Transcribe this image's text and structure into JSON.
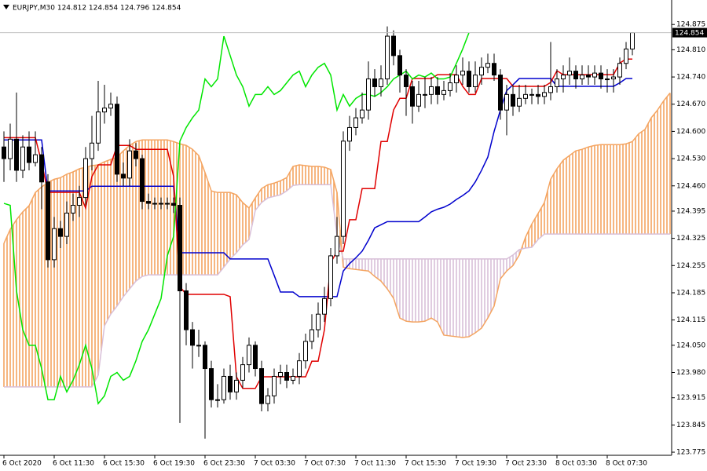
{
  "chart_data": {
    "type": "candlestick",
    "title": "EURJPY,M30  124.812 124.854 124.796 124.854",
    "categories": [
      "6 Oct 2020",
      null,
      null,
      null,
      null,
      null,
      null,
      null,
      "6 Oct 11:30",
      null,
      null,
      null,
      null,
      null,
      null,
      null,
      "6 Oct 15:30",
      null,
      null,
      null,
      null,
      null,
      null,
      null,
      "6 Oct 19:30",
      null,
      null,
      null,
      null,
      null,
      null,
      null,
      "6 Oct 23:30",
      null,
      null,
      null,
      null,
      null,
      null,
      null,
      "7 Oct 03:30",
      null,
      null,
      null,
      null,
      null,
      null,
      null,
      "7 Oct 07:30",
      null,
      null,
      null,
      null,
      null,
      null,
      null,
      "7 Oct 11:30",
      null,
      null,
      null,
      null,
      null,
      null,
      null,
      "7 Oct 15:30",
      null,
      null,
      null,
      null,
      null,
      null,
      null,
      "7 Oct 19:30",
      null,
      null,
      null,
      null,
      null,
      null,
      null,
      "7 Oct 23:30",
      null,
      null,
      null,
      null,
      null,
      null,
      null,
      "8 Oct 03:30",
      null,
      null,
      null,
      null,
      null,
      null,
      null,
      "8 Oct 07:30",
      null,
      null,
      null,
      null,
      null,
      null,
      null,
      null,
      null,
      null
    ],
    "open": [
      124.56,
      124.53,
      124.58,
      124.5,
      124.56,
      124.52,
      124.54,
      124.47,
      124.27,
      124.35,
      124.33,
      124.39,
      124.41,
      124.43,
      124.53,
      124.57,
      124.65,
      124.66,
      124.67,
      124.49,
      124.48,
      124.55,
      124.53,
      124.42,
      124.415,
      124.415,
      124.415,
      124.415,
      124.41,
      124.19,
      124.09,
      124.05,
      124.05,
      123.99,
      123.91,
      123.91,
      123.97,
      123.93,
      123.96,
      124.0,
      124.05,
      123.99,
      123.9,
      123.92,
      123.97,
      123.98,
      123.96,
      123.97,
      124.01,
      124.06,
      124.09,
      124.13,
      124.17,
      124.28,
      124.33,
      124.575,
      124.61,
      124.635,
      124.655,
      124.735,
      124.715,
      124.735,
      124.845,
      124.795,
      124.745,
      124.715,
      124.665,
      124.695,
      124.695,
      124.715,
      124.695,
      124.705,
      124.725,
      124.745,
      124.755,
      124.715,
      124.745,
      124.765,
      124.775,
      124.745,
      124.655,
      124.695,
      124.665,
      124.685,
      124.695,
      124.695,
      124.69,
      124.7,
      124.715,
      124.735,
      124.745,
      124.755,
      124.735,
      124.745,
      124.74,
      124.75,
      124.735,
      124.735,
      124.74,
      124.775,
      124.812,
      null,
      null,
      null,
      null,
      null,
      null
    ],
    "high": [
      124.6,
      124.62,
      124.7,
      124.59,
      124.6,
      124.6,
      124.56,
      124.49,
      124.38,
      124.37,
      124.42,
      124.44,
      124.46,
      124.56,
      124.64,
      124.73,
      124.72,
      124.7,
      124.69,
      124.52,
      124.58,
      124.57,
      124.54,
      124.44,
      124.43,
      124.43,
      124.43,
      124.43,
      124.43,
      124.21,
      124.11,
      124.09,
      124.06,
      124.01,
      123.95,
      123.99,
      124.0,
      123.98,
      124.02,
      124.07,
      124.06,
      124.01,
      123.94,
      123.99,
      124.0,
      124.0,
      123.99,
      124.03,
      124.08,
      124.13,
      124.16,
      124.2,
      124.3,
      124.38,
      124.6,
      124.64,
      124.66,
      124.7,
      124.78,
      124.76,
      124.77,
      124.87,
      124.86,
      124.81,
      124.76,
      124.73,
      124.73,
      124.74,
      124.74,
      124.74,
      124.73,
      124.75,
      124.77,
      124.79,
      124.78,
      124.78,
      124.79,
      124.8,
      124.8,
      124.76,
      124.72,
      124.72,
      124.72,
      124.72,
      124.71,
      124.72,
      124.72,
      124.83,
      124.76,
      124.77,
      124.79,
      124.77,
      124.77,
      124.77,
      124.77,
      124.77,
      124.76,
      124.76,
      124.79,
      124.83,
      124.854,
      null,
      null,
      null,
      null,
      null,
      null
    ],
    "low": [
      124.47,
      124.5,
      124.47,
      124.48,
      124.5,
      124.51,
      124.4,
      124.25,
      124.25,
      124.3,
      124.31,
      124.37,
      124.38,
      124.41,
      124.5,
      124.55,
      124.62,
      124.64,
      124.47,
      124.46,
      124.46,
      124.51,
      124.4,
      124.4,
      124.4,
      124.4,
      124.4,
      124.39,
      123.85,
      124.05,
      123.99,
      124.02,
      123.81,
      123.89,
      123.89,
      123.9,
      123.91,
      123.91,
      123.94,
      123.98,
      123.97,
      123.88,
      123.88,
      123.9,
      123.95,
      123.94,
      123.95,
      123.95,
      123.99,
      124.04,
      124.07,
      124.11,
      124.15,
      124.26,
      124.31,
      124.55,
      124.59,
      124.62,
      124.63,
      124.69,
      124.69,
      124.72,
      124.77,
      124.7,
      124.64,
      124.62,
      124.65,
      124.66,
      124.67,
      124.67,
      124.68,
      124.69,
      124.7,
      124.72,
      124.7,
      124.7,
      124.72,
      124.75,
      124.73,
      124.63,
      124.59,
      124.64,
      124.65,
      124.67,
      124.67,
      124.67,
      124.67,
      124.68,
      124.7,
      124.7,
      124.72,
      124.71,
      124.72,
      124.72,
      124.72,
      124.71,
      124.7,
      124.7,
      124.72,
      124.76,
      124.796,
      null,
      null,
      null,
      null,
      null,
      null
    ],
    "close": [
      124.53,
      124.58,
      124.5,
      124.56,
      124.52,
      124.54,
      124.47,
      124.27,
      124.35,
      124.33,
      124.39,
      124.41,
      124.43,
      124.53,
      124.57,
      124.65,
      124.66,
      124.67,
      124.49,
      124.48,
      124.55,
      124.53,
      124.42,
      124.415,
      124.415,
      124.415,
      124.415,
      124.41,
      124.19,
      124.09,
      124.05,
      124.05,
      123.99,
      123.91,
      123.91,
      123.97,
      123.93,
      123.96,
      124.0,
      124.05,
      123.99,
      123.9,
      123.92,
      123.97,
      123.98,
      123.96,
      123.97,
      124.01,
      124.06,
      124.09,
      124.13,
      124.17,
      124.28,
      124.33,
      124.575,
      124.61,
      124.635,
      124.655,
      124.735,
      124.715,
      124.735,
      124.845,
      124.795,
      124.745,
      124.715,
      124.665,
      124.695,
      124.695,
      124.715,
      124.695,
      124.705,
      124.725,
      124.745,
      124.755,
      124.715,
      124.745,
      124.765,
      124.775,
      124.745,
      124.655,
      124.695,
      124.665,
      124.685,
      124.695,
      124.695,
      124.69,
      124.7,
      124.715,
      124.735,
      124.745,
      124.755,
      124.735,
      124.745,
      124.74,
      124.75,
      124.735,
      124.735,
      124.74,
      124.775,
      124.812,
      124.854,
      null,
      null,
      null,
      null,
      null,
      null
    ],
    "up_color": "#ffffff",
    "down_color": "#000000",
    "wick_color": "#000000",
    "series": [
      {
        "color": "#e00000",
        "values": [
          124.584,
          124.584,
          124.584,
          124.584,
          124.584,
          124.584,
          124.52,
          124.443,
          124.443,
          124.443,
          124.443,
          124.443,
          124.443,
          124.403,
          124.484,
          124.514,
          124.514,
          124.514,
          124.564,
          124.564,
          124.564,
          124.554,
          124.554,
          124.554,
          124.554,
          124.554,
          124.554,
          124.484,
          124.201,
          124.181,
          124.181,
          124.181,
          124.181,
          124.181,
          124.181,
          124.181,
          124.175,
          123.969,
          123.939,
          123.939,
          123.939,
          123.969,
          123.969,
          123.969,
          123.969,
          123.969,
          123.969,
          123.969,
          123.969,
          124.009,
          124.009,
          124.09,
          124.262,
          124.292,
          124.292,
          124.373,
          124.373,
          124.453,
          124.453,
          124.453,
          124.574,
          124.574,
          124.655,
          124.685,
          124.685,
          124.736,
          124.736,
          124.736,
          124.736,
          124.746,
          124.746,
          124.746,
          124.746,
          124.716,
          124.695,
          124.695,
          124.736,
          124.736,
          124.736,
          124.736,
          124.736,
          124.716,
          124.716,
          124.716,
          124.716,
          124.716,
          124.716,
          124.726,
          124.756,
          124.746,
          124.746,
          124.746,
          124.746,
          124.746,
          124.746,
          124.746,
          124.746,
          124.746,
          124.776,
          124.786,
          124.786,
          null,
          null,
          null,
          null,
          null,
          null
        ]
      },
      {
        "color": "#0000cd",
        "values": [
          124.578,
          124.578,
          124.578,
          124.578,
          124.578,
          124.578,
          124.578,
          124.447,
          124.447,
          124.447,
          124.447,
          124.447,
          124.447,
          124.447,
          124.459,
          124.459,
          124.459,
          124.459,
          124.459,
          124.459,
          124.459,
          124.459,
          124.459,
          124.459,
          124.459,
          124.459,
          124.459,
          124.459,
          124.288,
          124.288,
          124.288,
          124.288,
          124.288,
          124.288,
          124.288,
          124.288,
          124.272,
          124.272,
          124.272,
          124.272,
          124.272,
          124.272,
          124.272,
          124.23,
          124.187,
          124.187,
          124.187,
          124.175,
          124.175,
          124.175,
          124.175,
          124.175,
          124.175,
          124.175,
          124.241,
          124.26,
          124.275,
          124.292,
          124.32,
          124.352,
          124.36,
          124.368,
          124.368,
          124.368,
          124.368,
          124.368,
          124.368,
          124.38,
          124.393,
          124.4,
          124.405,
          124.413,
          124.425,
          124.435,
          124.447,
          124.47,
          124.5,
          124.534,
          124.6,
          124.655,
          124.705,
          124.72,
          124.736,
          124.736,
          124.736,
          124.736,
          124.736,
          124.736,
          124.716,
          124.716,
          124.716,
          124.716,
          124.716,
          124.716,
          124.716,
          124.716,
          124.716,
          124.716,
          124.725,
          124.736,
          124.736,
          null,
          null,
          null,
          null,
          null,
          null
        ]
      },
      {
        "color": "#00e600",
        "values": [
          124.415,
          124.41,
          124.19,
          124.09,
          124.05,
          124.05,
          123.99,
          123.91,
          123.91,
          123.97,
          123.93,
          123.96,
          124.0,
          124.05,
          123.99,
          123.9,
          123.92,
          123.97,
          123.98,
          123.96,
          123.97,
          124.01,
          124.06,
          124.09,
          124.13,
          124.17,
          124.28,
          124.33,
          124.575,
          124.61,
          124.635,
          124.655,
          124.735,
          124.715,
          124.735,
          124.845,
          124.795,
          124.745,
          124.715,
          124.665,
          124.695,
          124.695,
          124.715,
          124.695,
          124.705,
          124.725,
          124.745,
          124.755,
          124.715,
          124.745,
          124.765,
          124.775,
          124.745,
          124.655,
          124.695,
          124.665,
          124.685,
          124.695,
          124.695,
          124.69,
          124.7,
          124.715,
          124.735,
          124.745,
          124.755,
          124.735,
          124.745,
          124.74,
          124.75,
          124.735,
          124.735,
          124.74,
          124.775,
          124.812,
          124.854,
          null,
          null,
          null,
          null,
          null,
          null,
          null,
          null,
          null,
          null,
          null,
          null,
          null,
          null,
          null,
          null,
          null,
          null,
          null,
          null,
          null,
          null,
          null,
          null,
          null,
          null,
          null,
          null,
          null,
          null,
          null,
          null
        ]
      },
      {
        "color": "#f4a460",
        "values": [
          124.312,
          124.348,
          124.373,
          124.393,
          124.409,
          124.443,
          124.457,
          124.469,
          124.477,
          124.481,
          124.49,
          124.496,
          124.504,
          124.508,
          124.512,
          124.514,
          124.522,
          124.528,
          124.534,
          124.55,
          124.564,
          124.574,
          124.578,
          124.578,
          124.578,
          124.578,
          124.578,
          124.574,
          124.568,
          124.564,
          124.554,
          124.538,
          124.494,
          124.447,
          124.443,
          124.443,
          124.443,
          124.437,
          124.417,
          124.403,
          124.429,
          124.453,
          124.463,
          124.467,
          124.473,
          124.481,
          124.51,
          124.514,
          124.512,
          124.51,
          124.51,
          124.508,
          124.502,
          124.443,
          124.251,
          124.247,
          124.245,
          124.243,
          124.241,
          124.227,
          124.215,
          124.195,
          124.171,
          124.12,
          124.112,
          124.11,
          124.11,
          124.112,
          124.12,
          124.11,
          124.076,
          124.074,
          124.072,
          124.07,
          124.072,
          124.082,
          124.094,
          124.12,
          124.151,
          124.221,
          124.241,
          124.255,
          124.282,
          124.328,
          124.362,
          124.389,
          124.417,
          124.477,
          124.504,
          124.526,
          124.538,
          124.55,
          124.554,
          124.56,
          124.564,
          124.566,
          124.566,
          124.566,
          124.566,
          124.568,
          124.574,
          124.594,
          124.605,
          124.635,
          124.655,
          124.679,
          124.699
        ]
      },
      {
        "color": "#d8bfd8",
        "values": [
          123.943,
          123.943,
          123.943,
          123.943,
          123.943,
          123.943,
          123.943,
          123.943,
          123.943,
          123.943,
          123.943,
          123.943,
          123.943,
          123.943,
          123.943,
          123.973,
          124.1,
          124.13,
          124.151,
          124.175,
          124.195,
          124.215,
          124.227,
          124.231,
          124.231,
          124.231,
          124.231,
          124.231,
          124.231,
          124.231,
          124.231,
          124.231,
          124.231,
          124.231,
          124.231,
          124.251,
          124.272,
          124.288,
          124.308,
          124.322,
          124.397,
          124.417,
          124.429,
          124.433,
          124.437,
          124.447,
          124.461,
          124.463,
          124.463,
          124.463,
          124.463,
          124.463,
          124.463,
          124.332,
          124.272,
          124.272,
          124.272,
          124.272,
          124.272,
          124.272,
          124.272,
          124.272,
          124.272,
          124.272,
          124.272,
          124.272,
          124.272,
          124.272,
          124.272,
          124.272,
          124.272,
          124.272,
          124.272,
          124.272,
          124.272,
          124.272,
          124.272,
          124.272,
          124.272,
          124.272,
          124.272,
          124.282,
          124.296,
          124.3,
          124.302,
          124.322,
          124.336,
          124.336,
          124.336,
          124.336,
          124.336,
          124.336,
          124.336,
          124.336,
          124.336,
          124.336,
          124.336,
          124.336,
          124.336,
          124.336,
          124.336,
          124.336,
          124.336,
          124.336,
          124.336,
          124.336,
          124.336
        ]
      }
    ],
    "cloud_hatch": true,
    "current_price": 124.854,
    "ylim": [
      123.767,
      124.938
    ],
    "yticks": [
      124.875,
      {
        "value": 124.81,
        "label": "124.810"
      },
      {
        "value": 124.74,
        "label": "124.740"
      },
      {
        "value": 124.67,
        "label": "124.670"
      },
      {
        "value": 124.6,
        "label": "124.600"
      },
      {
        "value": 124.53,
        "label": "124.530"
      },
      {
        "value": 124.46,
        "label": "124.460"
      },
      124.395,
      124.325,
      124.255,
      124.185,
      124.115,
      {
        "value": 124.05,
        "label": "124.050"
      },
      {
        "value": 123.98,
        "label": "123.980"
      },
      123.915,
      123.845,
      123.775
    ],
    "grid": false
  }
}
